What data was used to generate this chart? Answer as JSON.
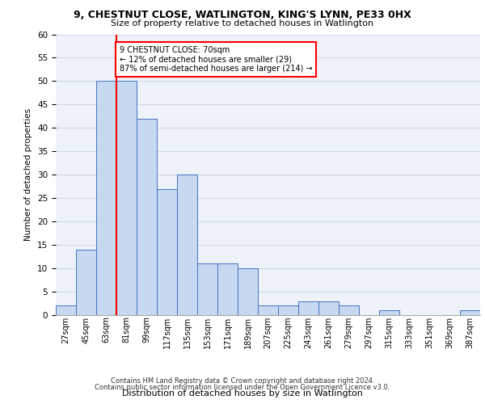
{
  "title1": "9, CHESTNUT CLOSE, WATLINGTON, KING'S LYNN, PE33 0HX",
  "title2": "Size of property relative to detached houses in Watlington",
  "xlabel": "Distribution of detached houses by size in Watlington",
  "ylabel": "Number of detached properties",
  "categories": [
    "27sqm",
    "45sqm",
    "63sqm",
    "81sqm",
    "99sqm",
    "117sqm",
    "135sqm",
    "153sqm",
    "171sqm",
    "189sqm",
    "207sqm",
    "225sqm",
    "243sqm",
    "261sqm",
    "279sqm",
    "297sqm",
    "315sqm",
    "333sqm",
    "351sqm",
    "369sqm",
    "387sqm"
  ],
  "values": [
    2,
    14,
    50,
    50,
    42,
    27,
    30,
    11,
    11,
    10,
    2,
    2,
    3,
    3,
    2,
    0,
    1,
    0,
    0,
    0,
    1
  ],
  "bar_color": "#c6d9f0",
  "bar_edge_color": "#4472c4",
  "red_line_x": 2.5,
  "annotation_text": "9 CHESTNUT CLOSE: 70sqm\n← 12% of detached houses are smaller (29)\n87% of semi-detached houses are larger (214) →",
  "annotation_box_color": "white",
  "annotation_box_edge_color": "red",
  "footer1": "Contains HM Land Registry data © Crown copyright and database right 2024.",
  "footer2": "Contains public sector information licensed under the Open Government Licence v3.0.",
  "ylim": [
    0,
    60
  ],
  "grid_color": "#d0d8e8",
  "background_color": "#eef2f9"
}
